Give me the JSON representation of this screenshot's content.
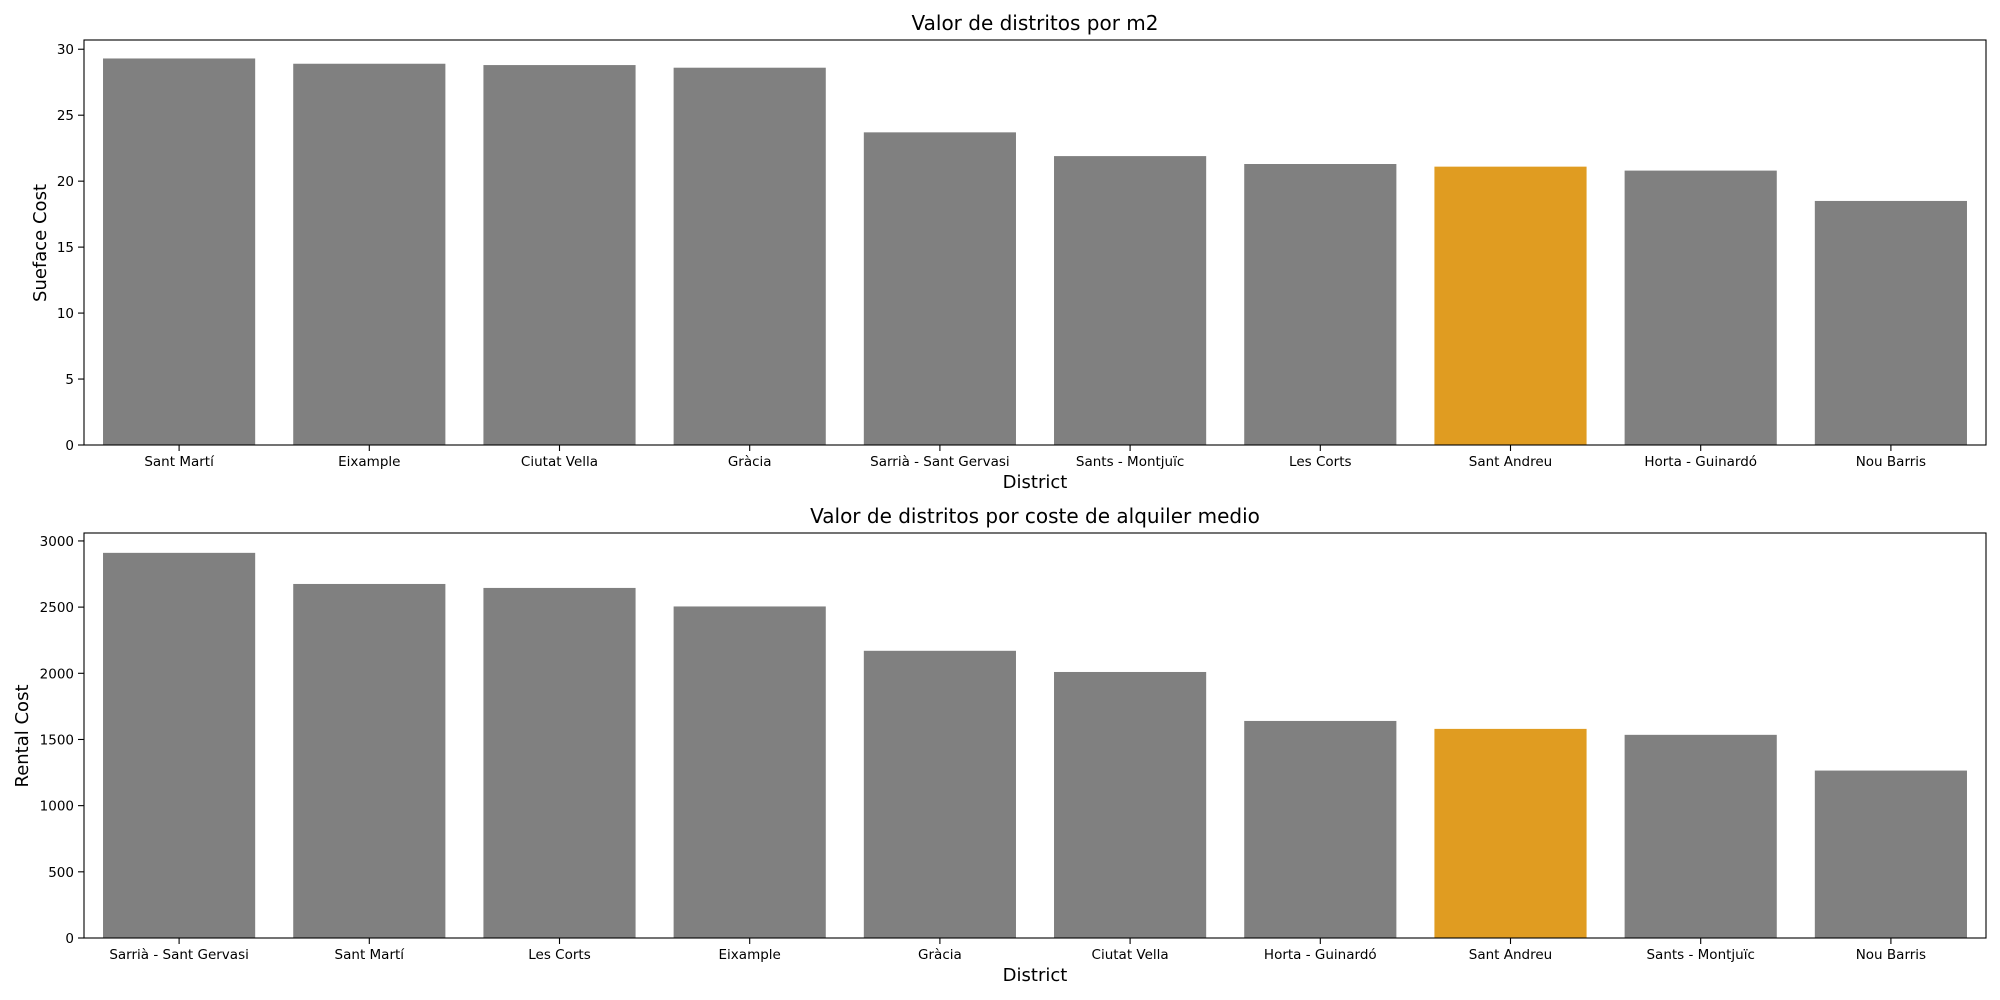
{
  "colors": {
    "bar": "#808080",
    "highlight": "#e09c21",
    "axis": "#000000",
    "background": "#ffffff"
  },
  "chart_data": [
    {
      "type": "bar",
      "title": "Valor de distritos por m2",
      "xlabel": "District",
      "ylabel": "Sueface Cost",
      "ylim": [
        0,
        30.7
      ],
      "yticks": [
        0,
        5,
        10,
        15,
        20,
        25,
        30
      ],
      "grid": false,
      "highlight_category": "Sant Andreu",
      "categories": [
        "Sant Martí",
        "Eixample",
        "Ciutat Vella",
        "Gràcia",
        "Sarrià - Sant Gervasi",
        "Sants - Montjuïc",
        "Les Corts",
        "Sant Andreu",
        "Horta - Guinardó",
        "Nou Barris"
      ],
      "values": [
        29.3,
        28.9,
        28.8,
        28.6,
        23.7,
        21.9,
        21.3,
        21.1,
        20.8,
        18.5
      ]
    },
    {
      "type": "bar",
      "title": "Valor de distritos por coste de alquiler medio",
      "xlabel": "District",
      "ylabel": "Rental Cost",
      "ylim": [
        0,
        3060
      ],
      "yticks": [
        0,
        500,
        1000,
        1500,
        2000,
        2500,
        3000
      ],
      "grid": false,
      "highlight_category": "Sant Andreu",
      "categories": [
        "Sarrià - Sant Gervasi",
        "Sant Martí",
        "Les Corts",
        "Eixample",
        "Gràcia",
        "Ciutat Vella",
        "Horta - Guinardó",
        "Sant Andreu",
        "Sants - Montjuïc",
        "Nou Barris"
      ],
      "values": [
        2910,
        2675,
        2645,
        2505,
        2170,
        2010,
        1640,
        1580,
        1535,
        1265
      ]
    }
  ]
}
